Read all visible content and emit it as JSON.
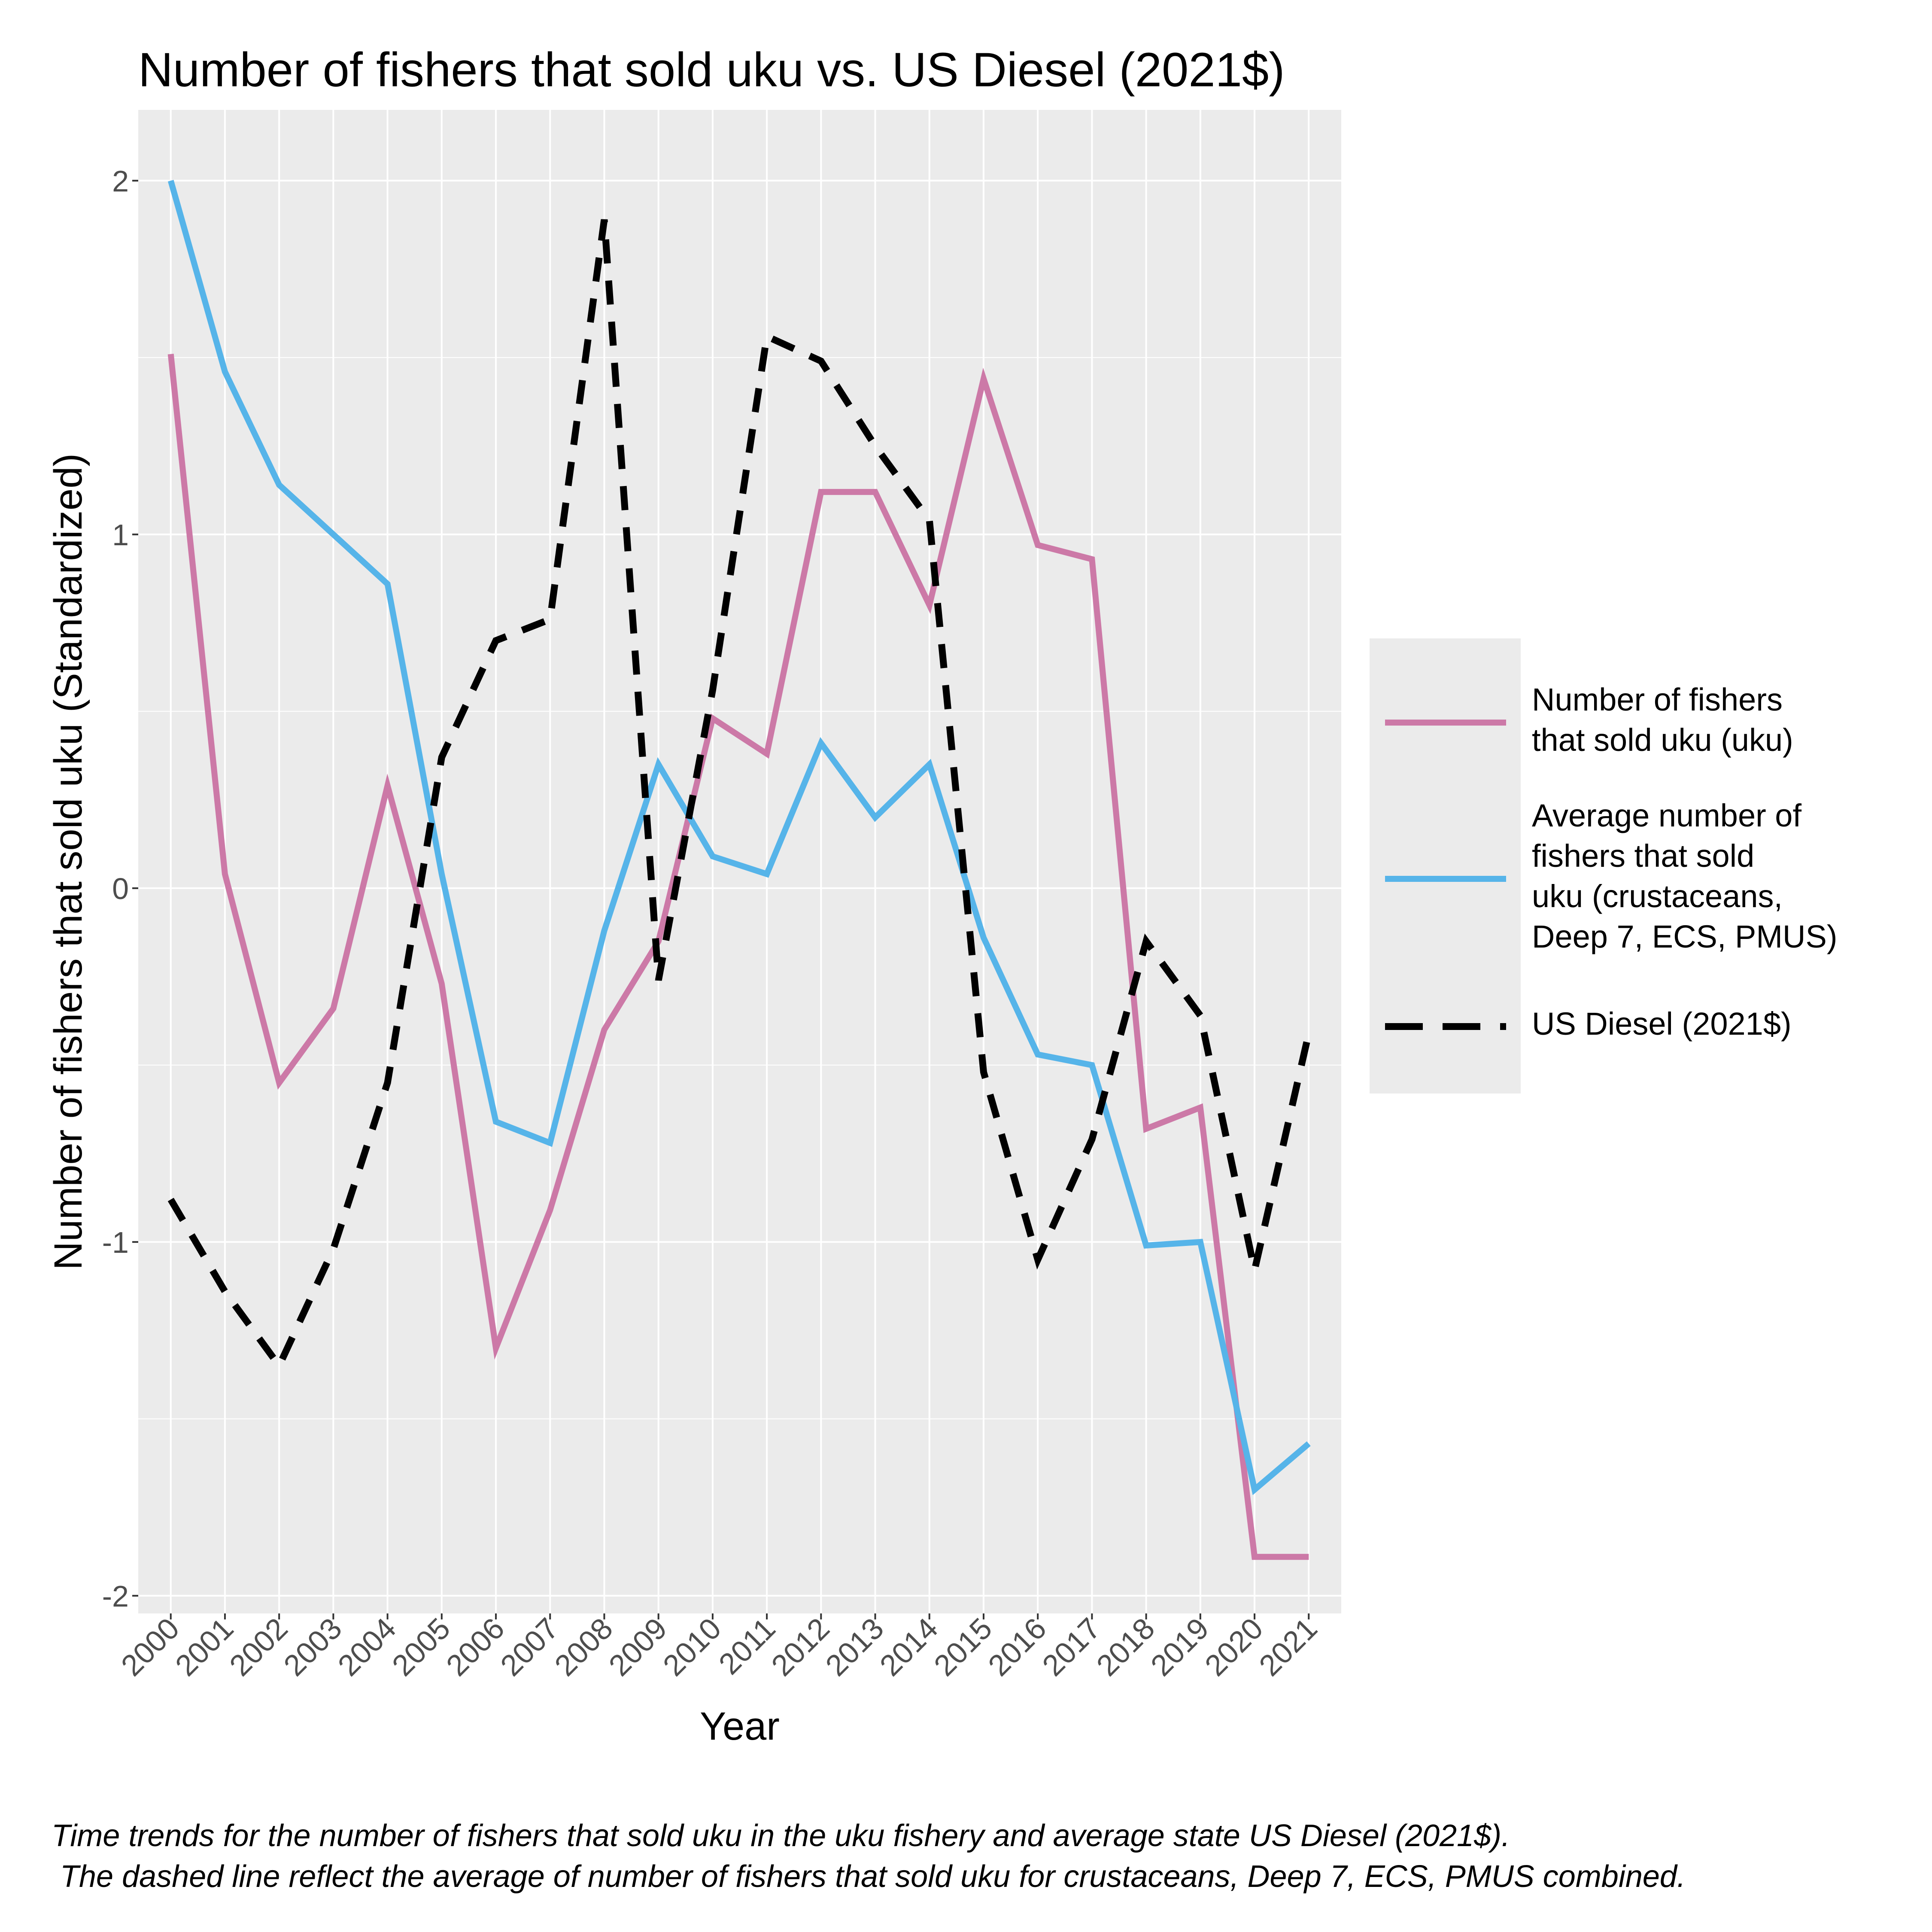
{
  "chart_data": {
    "type": "line",
    "title": "Number of fishers that sold uku vs. US Diesel (2021$)",
    "xlabel": "Year",
    "ylabel": "Number of fishers that sold uku (Standardized)",
    "ylim": [
      -2.05,
      2.2
    ],
    "yticks": [
      "-2",
      "-1",
      "0",
      "1",
      "2"
    ],
    "ytick_values": [
      -2,
      -1,
      0,
      1,
      2
    ],
    "x": [
      "2000",
      "2001",
      "2002",
      "2003",
      "2004",
      "2005",
      "2006",
      "2007",
      "2008",
      "2009",
      "2010",
      "2011",
      "2012",
      "2013",
      "2014",
      "2015",
      "2016",
      "2017",
      "2018",
      "2019",
      "2020",
      "2021"
    ],
    "series": [
      {
        "name": "Number of fishers that sold uku (uku)",
        "legend_lines": [
          "Number of fishers",
          "that sold uku (uku)"
        ],
        "color": "#cc79a7",
        "dash": "solid",
        "values": [
          1.51,
          0.04,
          -0.55,
          -0.34,
          0.29,
          -0.27,
          -1.3,
          -0.91,
          -0.4,
          -0.15,
          0.48,
          0.38,
          1.12,
          1.12,
          0.8,
          1.44,
          0.97,
          0.93,
          -0.68,
          -0.62,
          -1.89,
          -1.89
        ]
      },
      {
        "name": "Average number of fishers that sold uku (crustaceans, Deep 7, ECS, PMUS)",
        "legend_lines": [
          "Average number of",
          "fishers that sold",
          "uku (crustaceans,",
          "Deep 7, ECS, PMUS)"
        ],
        "color": "#56b4e9",
        "dash": "solid",
        "values": [
          2.0,
          1.46,
          1.14,
          1.0,
          0.86,
          0.04,
          -0.66,
          -0.72,
          -0.12,
          0.35,
          0.09,
          0.04,
          0.41,
          0.2,
          0.35,
          -0.14,
          -0.47,
          -0.5,
          -1.01,
          -1.0,
          -1.7,
          -1.57
        ]
      },
      {
        "name": "US Diesel (2021$)",
        "legend_lines": [
          "US Diesel (2021$)"
        ],
        "color": "#000000",
        "dash": "dashed",
        "values": [
          -0.88,
          -1.14,
          -1.35,
          -1.02,
          -0.55,
          0.37,
          0.7,
          0.76,
          1.89,
          -0.26,
          0.56,
          1.56,
          1.49,
          1.25,
          1.04,
          -0.52,
          -1.05,
          -0.71,
          -0.15,
          -0.36,
          -1.08,
          -0.41
        ]
      }
    ],
    "grid": true,
    "legend_position": "right"
  },
  "caption": {
    "line1": "Time trends for the number of fishers that sold uku in the uku fishery and average state US Diesel (2021$).",
    "line2": " The dashed line reflect the average of number of fishers that sold uku for crustaceans, Deep 7, ECS, PMUS combined."
  }
}
